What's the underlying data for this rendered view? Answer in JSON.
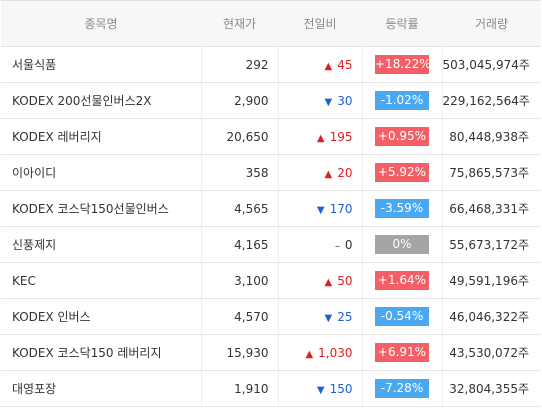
{
  "colors": {
    "up_badge": "#f25f66",
    "down_badge": "#4aa8f0",
    "flat_badge": "#a5a5a5",
    "up_text": "#e02020",
    "down_text": "#1f62d8"
  },
  "headers": [
    "종목명",
    "현재가",
    "전일비",
    "등락률",
    "거래량"
  ],
  "rows": [
    {
      "name": "서울식품",
      "price": "292",
      "dir": "up",
      "arrow": "▲",
      "change": "45",
      "rate": "+18.22%",
      "volume": "503,045,974주"
    },
    {
      "name": "KODEX 200선물인버스2X",
      "price": "2,900",
      "dir": "down",
      "arrow": "▼",
      "change": "30",
      "rate": "-1.02%",
      "volume": "229,162,564주"
    },
    {
      "name": "KODEX 레버리지",
      "price": "20,650",
      "dir": "up",
      "arrow": "▲",
      "change": "195",
      "rate": "+0.95%",
      "volume": "80,448,938주"
    },
    {
      "name": "이아이디",
      "price": "358",
      "dir": "up",
      "arrow": "▲",
      "change": "20",
      "rate": "+5.92%",
      "volume": "75,865,573주"
    },
    {
      "name": "KODEX 코스닥150선물인버스",
      "price": "4,565",
      "dir": "down",
      "arrow": "▼",
      "change": "170",
      "rate": "-3.59%",
      "volume": "66,468,331주"
    },
    {
      "name": "신풍제지",
      "price": "4,165",
      "dir": "flat",
      "arrow": "–",
      "change": "0",
      "rate": "0%",
      "volume": "55,673,172주"
    },
    {
      "name": "KEC",
      "price": "3,100",
      "dir": "up",
      "arrow": "▲",
      "change": "50",
      "rate": "+1.64%",
      "volume": "49,591,196주"
    },
    {
      "name": "KODEX 인버스",
      "price": "4,570",
      "dir": "down",
      "arrow": "▼",
      "change": "25",
      "rate": "-0.54%",
      "volume": "46,046,322주"
    },
    {
      "name": "KODEX 코스닥150 레버리지",
      "price": "15,930",
      "dir": "up",
      "arrow": "▲",
      "change": "1,030",
      "rate": "+6.91%",
      "volume": "43,530,072주"
    },
    {
      "name": "대영포장",
      "price": "1,910",
      "dir": "down",
      "arrow": "▼",
      "change": "150",
      "rate": "-7.28%",
      "volume": "32,804,355주"
    }
  ]
}
